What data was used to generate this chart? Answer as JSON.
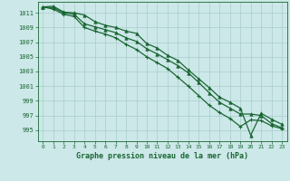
{
  "title": "Graphe pression niveau de la mer (hPa)",
  "background_color": "#cce8e8",
  "grid_color": "#aacccc",
  "line_color": "#1a6633",
  "xlim": [
    -0.5,
    23.5
  ],
  "ylim": [
    993.5,
    1012.5
  ],
  "yticks": [
    995,
    997,
    999,
    1001,
    1003,
    1005,
    1007,
    1009,
    1011
  ],
  "xticks": [
    0,
    1,
    2,
    3,
    4,
    5,
    6,
    7,
    8,
    9,
    10,
    11,
    12,
    13,
    14,
    15,
    16,
    17,
    18,
    19,
    20,
    21,
    22,
    23
  ],
  "series1": [
    1011.8,
    1011.9,
    1011.1,
    1011.0,
    1010.7,
    1009.8,
    1009.3,
    1009.0,
    1008.5,
    1008.2,
    1006.8,
    1006.2,
    1005.2,
    1004.5,
    1003.2,
    1002.0,
    1000.8,
    999.5,
    998.8,
    998.0,
    994.3,
    997.3,
    996.5,
    995.8
  ],
  "series2": [
    1011.8,
    1011.7,
    1011.0,
    1010.8,
    1009.5,
    1009.1,
    1008.7,
    1008.3,
    1007.6,
    1007.1,
    1006.1,
    1005.4,
    1004.6,
    1003.8,
    1002.8,
    1001.5,
    1000.1,
    998.8,
    998.0,
    997.2,
    997.2,
    997.0,
    995.9,
    995.3
  ],
  "series3": [
    1011.8,
    1011.5,
    1010.8,
    1010.5,
    1009.0,
    1008.5,
    1008.1,
    1007.6,
    1006.7,
    1006.0,
    1005.0,
    1004.2,
    1003.4,
    1002.2,
    1001.0,
    999.7,
    998.4,
    997.4,
    996.6,
    995.5,
    996.4,
    996.3,
    995.6,
    995.2
  ]
}
